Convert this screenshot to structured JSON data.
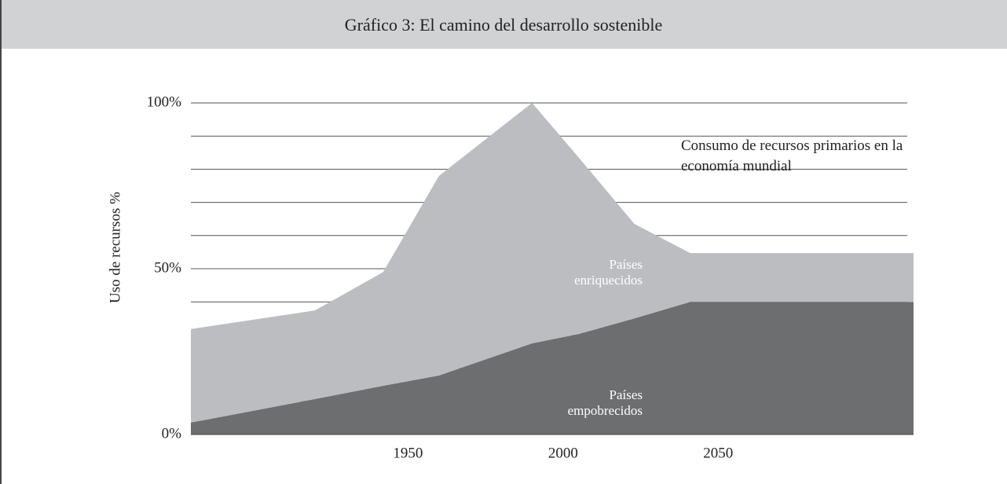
{
  "chart_data": {
    "type": "stacked_area",
    "title": "Gráfico 3: El camino del desarrollo sostenible",
    "y_label": "Uso de recursos %",
    "annotation": "Consumo de recursos primarios en la economía mundial",
    "x": [
      1880,
      1920,
      1942,
      1960,
      1990,
      2005,
      2023,
      2041,
      2113
    ],
    "series": [
      {
        "name": "Países empobrecidos",
        "color": "#6d6e70",
        "values": [
          3.6,
          10.7,
          14.7,
          17.8,
          27.5,
          30.3,
          35,
          40,
          40
        ]
      },
      {
        "name": "Países enriquecidos",
        "color": "#bcbdc0",
        "values": [
          28.2,
          26.7,
          34.3,
          60.2,
          72.5,
          53.3,
          28.5,
          14.7,
          14.7
        ]
      }
    ],
    "xlim": [
      1880,
      2113
    ],
    "xticks": [
      1950,
      2000,
      2050
    ],
    "ylim": [
      0,
      100
    ],
    "yticks": [
      {
        "value": 0,
        "label": "0%"
      },
      {
        "value": 10,
        "label": null
      },
      {
        "value": 20,
        "label": null
      },
      {
        "value": 30,
        "label": null
      },
      {
        "value": 40,
        "label": null
      },
      {
        "value": 50,
        "label": "50%"
      },
      {
        "value": 60,
        "label": null
      },
      {
        "value": 70,
        "label": null
      },
      {
        "value": 80,
        "label": null
      },
      {
        "value": 90,
        "label": null
      },
      {
        "value": 100,
        "label": "100%"
      }
    ],
    "grid": true
  }
}
